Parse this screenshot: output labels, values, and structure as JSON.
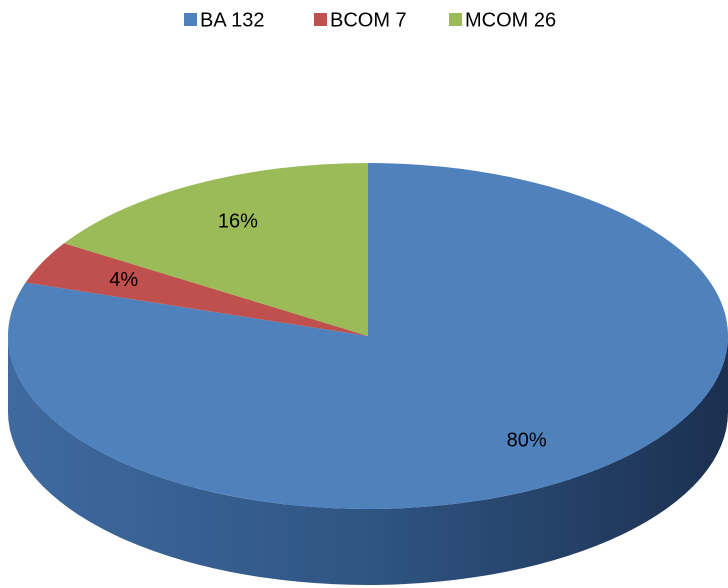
{
  "chart_data": {
    "type": "pie",
    "categories": [
      "BA 132",
      "BCOM 7",
      "MCOM 26"
    ],
    "values": [
      80,
      4,
      16
    ],
    "value_labels": [
      "80%",
      "4%",
      "16%"
    ],
    "colors": [
      "#4f81bd",
      "#c0504d",
      "#9bbb59"
    ],
    "legend": "top"
  }
}
